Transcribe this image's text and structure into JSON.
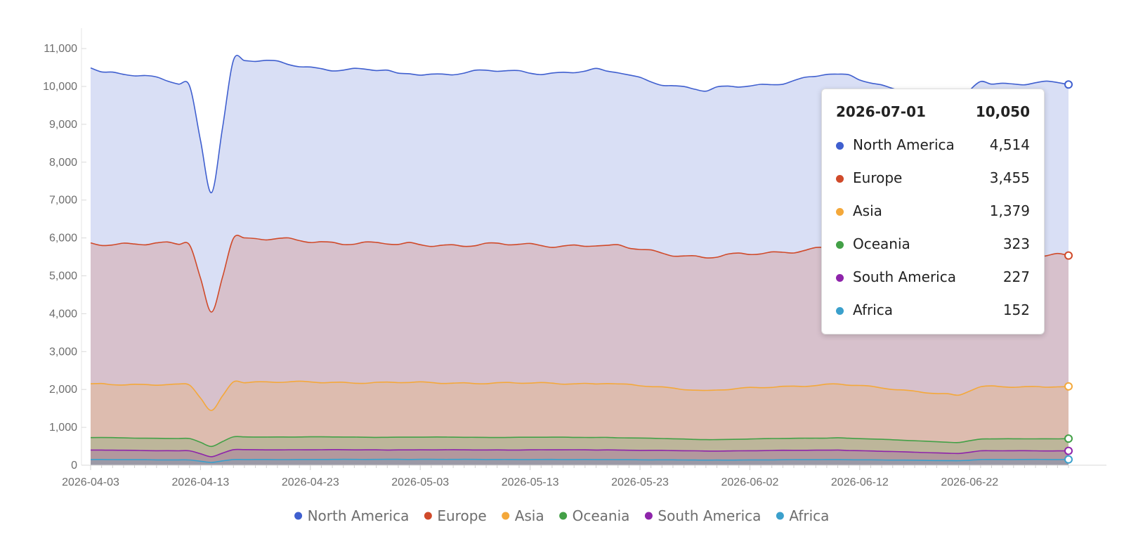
{
  "chart_data": {
    "type": "area",
    "stacked": true,
    "title": "",
    "xlabel": "",
    "ylabel": "",
    "ylim": [
      0,
      11500
    ],
    "yticks": [
      0,
      1000,
      2000,
      3000,
      4000,
      5000,
      6000,
      7000,
      8000,
      9000,
      10000,
      11000
    ],
    "ytick_labels": [
      "0",
      "1,000",
      "2,000",
      "3,000",
      "4,000",
      "5,000",
      "6,000",
      "7,000",
      "8,000",
      "9,000",
      "10,000",
      "11,000"
    ],
    "xtick_labels": [
      "2026-04-03",
      "2026-04-13",
      "2026-04-23",
      "2026-05-03",
      "2026-05-13",
      "2026-05-23",
      "2026-06-02",
      "2026-06-12",
      "2026-06-22"
    ],
    "x_start": "2026-04-03",
    "x_end": "2026-07-01",
    "grid": false,
    "legend_position": "bottom",
    "series": [
      {
        "name": "Africa",
        "color": "#3ba0cc",
        "keys": [
          [
            "2026-04-03",
            150
          ],
          [
            "2026-04-12",
            140
          ],
          [
            "2026-04-14",
            75
          ],
          [
            "2026-04-16",
            150
          ],
          [
            "2026-05-01",
            155
          ],
          [
            "2026-05-20",
            150
          ],
          [
            "2026-05-29",
            135
          ],
          [
            "2026-06-10",
            150
          ],
          [
            "2026-06-21",
            120
          ],
          [
            "2026-06-23",
            150
          ],
          [
            "2026-07-01",
            152
          ]
        ]
      },
      {
        "name": "South America",
        "color": "#8e24aa",
        "keys": [
          [
            "2026-04-03",
            250
          ],
          [
            "2026-04-12",
            240
          ],
          [
            "2026-04-14",
            150
          ],
          [
            "2026-04-16",
            260
          ],
          [
            "2026-05-01",
            250
          ],
          [
            "2026-05-20",
            255
          ],
          [
            "2026-05-29",
            240
          ],
          [
            "2026-06-10",
            250
          ],
          [
            "2026-06-21",
            190
          ],
          [
            "2026-06-23",
            230
          ],
          [
            "2026-07-01",
            227
          ]
        ]
      },
      {
        "name": "Oceania",
        "color": "#43a047",
        "keys": [
          [
            "2026-04-03",
            330
          ],
          [
            "2026-04-12",
            325
          ],
          [
            "2026-04-14",
            270
          ],
          [
            "2026-04-16",
            340
          ],
          [
            "2026-05-01",
            335
          ],
          [
            "2026-05-20",
            330
          ],
          [
            "2026-05-29",
            300
          ],
          [
            "2026-06-10",
            325
          ],
          [
            "2026-06-21",
            290
          ],
          [
            "2026-06-23",
            310
          ],
          [
            "2026-07-01",
            323
          ]
        ]
      },
      {
        "name": "Asia",
        "color": "#f4a83a",
        "keys": [
          [
            "2026-04-03",
            1420
          ],
          [
            "2026-04-12",
            1410
          ],
          [
            "2026-04-14",
            950
          ],
          [
            "2026-04-16",
            1450
          ],
          [
            "2026-05-01",
            1440
          ],
          [
            "2026-05-20",
            1420
          ],
          [
            "2026-05-29",
            1300
          ],
          [
            "2026-06-10",
            1420
          ],
          [
            "2026-06-21",
            1250
          ],
          [
            "2026-06-23",
            1380
          ],
          [
            "2026-07-01",
            1379
          ]
        ]
      },
      {
        "name": "Europe",
        "color": "#d04a2a",
        "keys": [
          [
            "2026-04-03",
            3720
          ],
          [
            "2026-04-12",
            3700
          ],
          [
            "2026-04-14",
            2600
          ],
          [
            "2026-04-16",
            3790
          ],
          [
            "2026-05-01",
            3650
          ],
          [
            "2026-05-20",
            3650
          ],
          [
            "2026-05-29",
            3500
          ],
          [
            "2026-06-10",
            3620
          ],
          [
            "2026-06-21",
            3450
          ],
          [
            "2026-06-23",
            3460
          ],
          [
            "2026-07-01",
            3455
          ]
        ]
      },
      {
        "name": "North America",
        "color": "#3f5fcf",
        "keys": [
          [
            "2026-04-03",
            4620
          ],
          [
            "2026-04-12",
            4200
          ],
          [
            "2026-04-14",
            3150
          ],
          [
            "2026-04-16",
            4700
          ],
          [
            "2026-05-01",
            4520
          ],
          [
            "2026-05-20",
            4600
          ],
          [
            "2026-05-29",
            4400
          ],
          [
            "2026-06-10",
            4560
          ],
          [
            "2026-06-21",
            4300
          ],
          [
            "2026-06-23",
            4600
          ],
          [
            "2026-07-01",
            4514
          ]
        ]
      }
    ]
  },
  "legend": [
    {
      "name": "North America",
      "color": "#3f5fcf"
    },
    {
      "name": "Europe",
      "color": "#d04a2a"
    },
    {
      "name": "Asia",
      "color": "#f4a83a"
    },
    {
      "name": "Oceania",
      "color": "#43a047"
    },
    {
      "name": "South America",
      "color": "#8e24aa"
    },
    {
      "name": "Africa",
      "color": "#3ba0cc"
    }
  ],
  "tooltip": {
    "date": "2026-07-01",
    "total": "10,050",
    "rows": [
      {
        "name": "North America",
        "value": "4,514",
        "color": "#3f5fcf"
      },
      {
        "name": "Europe",
        "value": "3,455",
        "color": "#d04a2a"
      },
      {
        "name": "Asia",
        "value": "1,379",
        "color": "#f4a83a"
      },
      {
        "name": "Oceania",
        "value": "323",
        "color": "#43a047"
      },
      {
        "name": "South America",
        "value": "227",
        "color": "#8e24aa"
      },
      {
        "name": "Africa",
        "value": "152",
        "color": "#3ba0cc"
      }
    ]
  }
}
